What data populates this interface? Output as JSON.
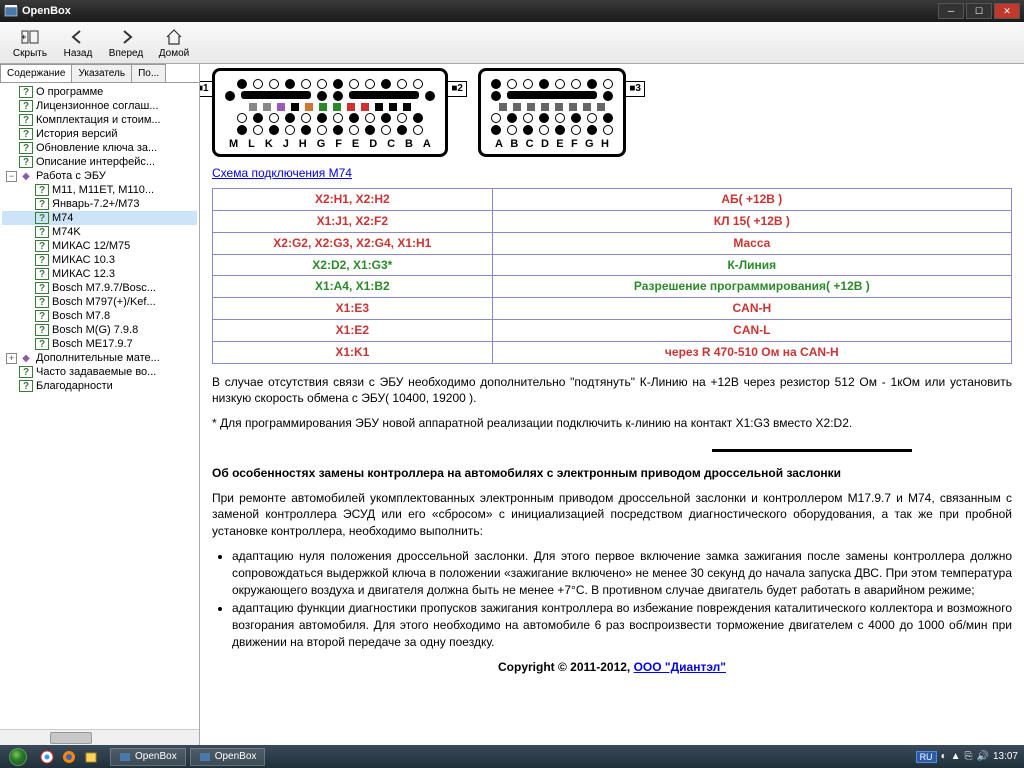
{
  "window": {
    "title": "OpenBox"
  },
  "toolbar": {
    "hide": "Скрыть",
    "back": "Назад",
    "forward": "Вперед",
    "home": "Домой"
  },
  "tabs": {
    "content": "Содержание",
    "index": "Указатель",
    "search": "По..."
  },
  "tree": {
    "about": "О программе",
    "license": "Лицензионное соглаш...",
    "bundle": "Комплектация и стоим...",
    "history": "История версий",
    "keyupd": "Обновление ключа за...",
    "iface": "Описание интерфейс...",
    "ecu": "Работа с ЭБУ",
    "m11": "M11, M11ET, M110...",
    "jan": "Январь-7.2+/M73",
    "m74": "M74",
    "m74k": "M74K",
    "mikas12": "МИКАС 12/M75",
    "mikas103": "МИКАС 10.3",
    "mikas123": "МИКАС 12.3",
    "bosch797": "Bosch M7.9.7/Bosc...",
    "bosch797k": "Bosch M797(+)/Kef...",
    "bosch78": "Bosch M7.8",
    "boschmg": "Bosch M(G) 7.9.8",
    "boschme": "Bosch ME17.9.7",
    "addmat": "Дополнительные мате...",
    "faq": "Часто задаваемые во...",
    "thanks": "Благодарности"
  },
  "content": {
    "connector_left_labels": [
      "M",
      "L",
      "K",
      "J",
      "H",
      "G",
      "F",
      "E",
      "D",
      "C",
      "B",
      "A"
    ],
    "connector_right_labels": [
      "A",
      "B",
      "C",
      "D",
      "E",
      "F",
      "G",
      "H"
    ],
    "color_squares_left": [
      "#888888",
      "#888888",
      "#9b59b6",
      "#000000",
      "#cc7733",
      "#2a8a2a",
      "#2a8a2a",
      "#d03030",
      "#d03030",
      "#000000",
      "#000000",
      "#000000"
    ],
    "color_squares_right": [
      "#666666",
      "#666666",
      "#666666",
      "#666666",
      "#666666",
      "#666666",
      "#666666",
      "#666666"
    ],
    "badge1": "■1",
    "badge2": "■2",
    "badge3": "■3",
    "link_scheme": "Схема подключения M74",
    "table": [
      {
        "pins": "X2:H1, X2:H2",
        "desc": "АБ( +12В )",
        "color": "#cc3333"
      },
      {
        "pins": "X1:J1, X2:F2",
        "desc": "КЛ 15( +12В )",
        "color": "#cc3333"
      },
      {
        "pins": "X2:G2, X2:G3, X2:G4, X1:H1",
        "desc": "Масса",
        "color": "#cc3333"
      },
      {
        "pins": "X2:D2, X1:G3*",
        "desc": "К-Линия",
        "color": "#2a8a2a"
      },
      {
        "pins": "X1:A4, X1:B2",
        "desc": "Разрешение программирования( +12В )",
        "color": "#2a8a2a"
      },
      {
        "pins": "X1:E3",
        "desc": "CAN-H",
        "color": "#cc3333"
      },
      {
        "pins": "X1:E2",
        "desc": "CAN-L",
        "color": "#cc3333"
      },
      {
        "pins": "X1:K1",
        "desc": "через R 470-510 Ом на CAN-H",
        "color": "#cc3333"
      }
    ],
    "para1": "В случае отсутствия связи с ЭБУ необходимо дополнительно \"подтянуть\" К-Линию на +12В через резистор 512 Ом - 1кОм или установить низкую скорость обмена с ЭБУ( 10400, 19200 ).",
    "para2": "* Для программирования ЭБУ новой аппаратной реализации подключить к-линию на контакт X1:G3 вместо X2:D2.",
    "heading2": "Об особенностях замены контроллера на автомобилях с электронным приводом дроссельной заслонки",
    "para3": "При ремонте автомобилей укомплектованных электронным приводом дроссельной заслонки и контроллером M17.9.7 и M74, связанным с заменой контроллера ЭСУД или его «сбросом» с инициализацией посредством диагностического оборудования, а так же при пробной установке контроллера, необходимо выполнить:",
    "bul1": "адаптацию нуля положения дроссельной заслонки. Для этого первое включение замка зажигания после замены контроллера должно сопровождаться выдержкой ключа в положении «зажигание включено» не менее 30 секунд до начала запуска ДВС. При этом температура окружающего воздуха и двигателя должна быть не менее +7°С. В противном случае двигатель будет работать в аварийном режиме;",
    "bul2": "адаптацию функции диагностики пропусков зажигания контроллера во избежание повреждения каталитического коллектора и возможного возгорания автомобиля. Для этого необходимо на автомобиле 6 раз воспроизвести торможение двигателем с 4000 до 1000 об/мин при движении на второй передаче за одну поездку.",
    "copyright_pre": "Copyright © 2011-2012, ",
    "copyright_link": "ООО \"Диантэл\""
  },
  "taskbar": {
    "app1": "OpenBox",
    "app2": "OpenBox",
    "lang": "RU",
    "time": "13:07"
  }
}
